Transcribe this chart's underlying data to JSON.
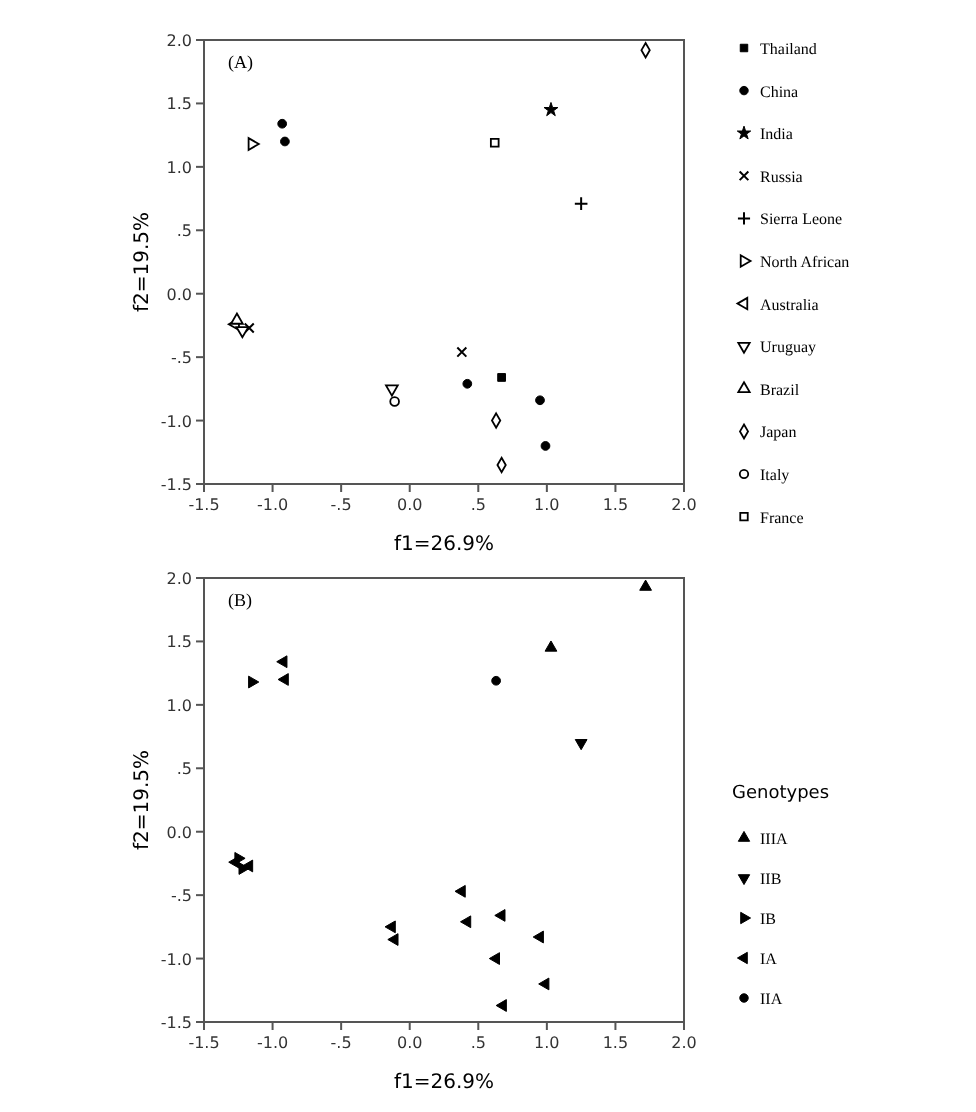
{
  "chart_data": [
    {
      "type": "scatter",
      "annotations": [
        "(A)"
      ],
      "xlabel": "f1=26.9%",
      "ylabel": "f2=19.5%",
      "xlim": [
        -1.5,
        2.0
      ],
      "ylim": [
        -1.5,
        2.0
      ],
      "xticks": [
        {
          "value": -1.5,
          "label": "-1.5"
        },
        {
          "value": -1.0,
          "label": "-1.0"
        },
        {
          "value": -0.5,
          "label": "-.5"
        },
        {
          "value": 0,
          "label": "0.0"
        },
        {
          "value": 0.5,
          "label": ".5"
        },
        {
          "value": 1.0,
          "label": "1.0"
        },
        {
          "value": 1.5,
          "label": "1.5"
        },
        {
          "value": 2.0,
          "label": "2.0"
        }
      ],
      "yticks": [
        {
          "value": -1.5,
          "label": "-1.5"
        },
        {
          "value": -1.0,
          "label": "-1.0"
        },
        {
          "value": -0.5,
          "label": "-.5"
        },
        {
          "value": 0,
          "label": "0.0"
        },
        {
          "value": 0.5,
          "label": ".5"
        },
        {
          "value": 1.0,
          "label": "1.0"
        },
        {
          "value": 1.5,
          "label": "1.5"
        },
        {
          "value": 2.0,
          "label": "2.0"
        }
      ],
      "legend": "right",
      "grid": false,
      "series": [
        {
          "name": "Thailand",
          "color": "#000000",
          "marker": "square",
          "x": [
            0.67
          ],
          "values": [
            -0.66
          ]
        },
        {
          "name": "China",
          "color": "#000000",
          "marker": "circle",
          "x": [
            -0.93,
            -0.91,
            0.42,
            0.95,
            0.99
          ],
          "values": [
            1.34,
            1.2,
            -0.71,
            -0.84,
            -1.2
          ]
        },
        {
          "name": "India",
          "color": "#000000",
          "marker": "star",
          "x": [
            1.03
          ],
          "values": [
            1.45
          ]
        },
        {
          "name": "Russia",
          "color": "#000000",
          "marker": "x",
          "x": [
            0.38,
            -1.17
          ],
          "values": [
            -0.46,
            -0.27
          ]
        },
        {
          "name": "Sierra Leone",
          "color": "#000000",
          "marker": "plus",
          "x": [
            1.25
          ],
          "values": [
            0.71
          ]
        },
        {
          "name": "North African",
          "color": "#000000",
          "marker": "triangle-right-open",
          "x": [
            -1.15
          ],
          "values": [
            1.18
          ]
        },
        {
          "name": "Australia",
          "color": "#000000",
          "marker": "triangle-left-open",
          "x": [
            -1.27
          ],
          "values": [
            -0.24
          ]
        },
        {
          "name": "Uruguay",
          "color": "#000000",
          "marker": "triangle-down-open",
          "x": [
            -0.13,
            -1.22
          ],
          "values": [
            -0.75,
            -0.29
          ]
        },
        {
          "name": "Brazil",
          "color": "#000000",
          "marker": "triangle-open",
          "x": [
            -1.26
          ],
          "values": [
            -0.21
          ]
        },
        {
          "name": "Japan",
          "color": "#000000",
          "marker": "diamond-open",
          "x": [
            1.72,
            0.63,
            0.67
          ],
          "values": [
            1.92,
            -1.0,
            -1.35
          ]
        },
        {
          "name": "Italy",
          "color": "#000000",
          "marker": "circle-open",
          "x": [
            -0.11
          ],
          "values": [
            -0.85
          ]
        },
        {
          "name": "France",
          "color": "#000000",
          "marker": "square-open",
          "x": [
            0.62
          ],
          "values": [
            1.19
          ]
        }
      ]
    },
    {
      "type": "scatter",
      "annotations": [
        "(B)"
      ],
      "xlabel": "f1=26.9%",
      "ylabel": "f2=19.5%",
      "xlim": [
        -1.5,
        2.0
      ],
      "ylim": [
        -1.5,
        2.0
      ],
      "xticks": [
        {
          "value": -1.5,
          "label": "-1.5"
        },
        {
          "value": -1.0,
          "label": "-1.0"
        },
        {
          "value": -0.5,
          "label": "-.5"
        },
        {
          "value": 0,
          "label": "0.0"
        },
        {
          "value": 0.5,
          "label": ".5"
        },
        {
          "value": 1.0,
          "label": "1.0"
        },
        {
          "value": 1.5,
          "label": "1.5"
        },
        {
          "value": 2.0,
          "label": "2.0"
        }
      ],
      "yticks": [
        {
          "value": -1.5,
          "label": "-1.5"
        },
        {
          "value": -1.0,
          "label": "-1.0"
        },
        {
          "value": -0.5,
          "label": "-.5"
        },
        {
          "value": 0,
          "label": "0.0"
        },
        {
          "value": 0.5,
          "label": ".5"
        },
        {
          "value": 1.0,
          "label": "1.0"
        },
        {
          "value": 1.5,
          "label": "1.5"
        },
        {
          "value": 2.0,
          "label": "2.0"
        }
      ],
      "legend": "right",
      "legend_title": "Genotypes",
      "grid": false,
      "series": [
        {
          "name": "IIIA",
          "color": "#000000",
          "marker": "triangle",
          "x": [
            1.72,
            1.03
          ],
          "values": [
            1.93,
            1.45
          ]
        },
        {
          "name": "IIB",
          "color": "#000000",
          "marker": "triangle-down",
          "x": [
            1.25
          ],
          "values": [
            0.7
          ]
        },
        {
          "name": "IB",
          "color": "#000000",
          "marker": "triangle-right",
          "x": [
            -1.15,
            -1.25,
            -1.22
          ],
          "values": [
            1.18,
            -0.21,
            -0.29
          ]
        },
        {
          "name": "IA",
          "color": "#000000",
          "marker": "triangle-left",
          "x": [
            -0.92,
            -0.91,
            0.38,
            0.67,
            0.42,
            -0.13,
            -0.11,
            0.95,
            0.63,
            0.99,
            0.68,
            -1.27,
            -1.17
          ],
          "values": [
            1.34,
            1.2,
            -0.47,
            -0.66,
            -0.71,
            -0.75,
            -0.85,
            -0.83,
            -1.0,
            -1.2,
            -1.37,
            -0.24,
            -0.27
          ]
        },
        {
          "name": "IIA",
          "color": "#000000",
          "marker": "circle",
          "x": [
            0.63
          ],
          "values": [
            1.19
          ]
        }
      ]
    }
  ]
}
